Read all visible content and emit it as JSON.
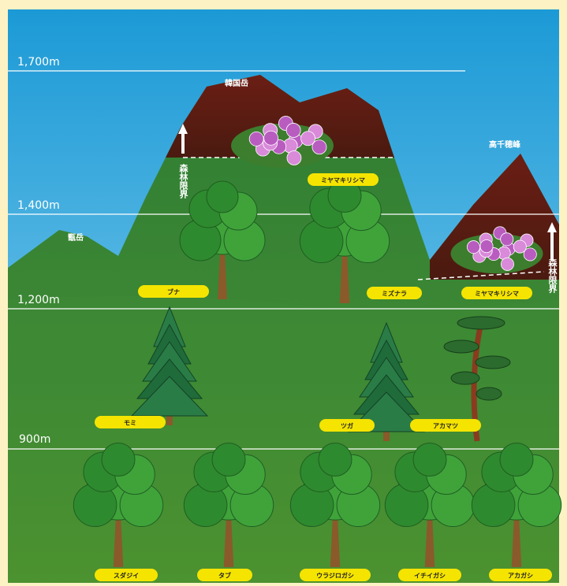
{
  "altitudes": [
    "1,700m",
    "1,400m",
    "1,200m",
    "900m"
  ],
  "peaks": [
    "韓国岳",
    "高千穂峰",
    "甑岳"
  ],
  "tree_line": [
    "森林限界",
    "森林限界"
  ],
  "plants": [
    "ミヤマキリシマ",
    "ブナ",
    "ミズナラ",
    "ミヤマキリシマ",
    "モミ",
    "ツガ",
    "アカマツ",
    "スダジイ",
    "タブ",
    "ウラジロガシ",
    "イチイガシ",
    "アカガシ"
  ]
}
